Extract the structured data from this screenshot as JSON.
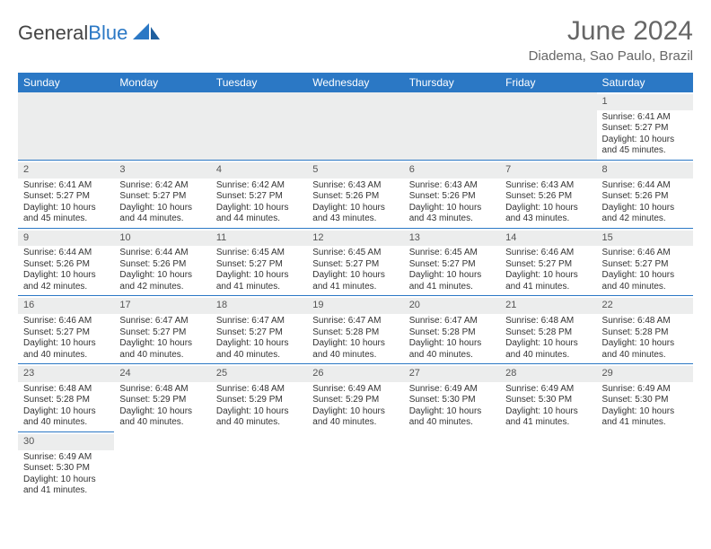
{
  "brand": {
    "name_a": "General",
    "name_b": "Blue",
    "color_a": "#444444",
    "color_b": "#2b78c5"
  },
  "title": "June 2024",
  "location": "Diadema, Sao Paulo, Brazil",
  "header_bg": "#2b78c5",
  "header_fg": "#ffffff",
  "daynum_bg": "#eceded",
  "cell_border": "#2b78c5",
  "weekdays": [
    "Sunday",
    "Monday",
    "Tuesday",
    "Wednesday",
    "Thursday",
    "Friday",
    "Saturday"
  ],
  "weeks": [
    [
      null,
      null,
      null,
      null,
      null,
      null,
      {
        "n": "1",
        "sr": "Sunrise: 6:41 AM",
        "ss": "Sunset: 5:27 PM",
        "d1": "Daylight: 10 hours",
        "d2": "and 45 minutes."
      }
    ],
    [
      {
        "n": "2",
        "sr": "Sunrise: 6:41 AM",
        "ss": "Sunset: 5:27 PM",
        "d1": "Daylight: 10 hours",
        "d2": "and 45 minutes."
      },
      {
        "n": "3",
        "sr": "Sunrise: 6:42 AM",
        "ss": "Sunset: 5:27 PM",
        "d1": "Daylight: 10 hours",
        "d2": "and 44 minutes."
      },
      {
        "n": "4",
        "sr": "Sunrise: 6:42 AM",
        "ss": "Sunset: 5:27 PM",
        "d1": "Daylight: 10 hours",
        "d2": "and 44 minutes."
      },
      {
        "n": "5",
        "sr": "Sunrise: 6:43 AM",
        "ss": "Sunset: 5:26 PM",
        "d1": "Daylight: 10 hours",
        "d2": "and 43 minutes."
      },
      {
        "n": "6",
        "sr": "Sunrise: 6:43 AM",
        "ss": "Sunset: 5:26 PM",
        "d1": "Daylight: 10 hours",
        "d2": "and 43 minutes."
      },
      {
        "n": "7",
        "sr": "Sunrise: 6:43 AM",
        "ss": "Sunset: 5:26 PM",
        "d1": "Daylight: 10 hours",
        "d2": "and 43 minutes."
      },
      {
        "n": "8",
        "sr": "Sunrise: 6:44 AM",
        "ss": "Sunset: 5:26 PM",
        "d1": "Daylight: 10 hours",
        "d2": "and 42 minutes."
      }
    ],
    [
      {
        "n": "9",
        "sr": "Sunrise: 6:44 AM",
        "ss": "Sunset: 5:26 PM",
        "d1": "Daylight: 10 hours",
        "d2": "and 42 minutes."
      },
      {
        "n": "10",
        "sr": "Sunrise: 6:44 AM",
        "ss": "Sunset: 5:26 PM",
        "d1": "Daylight: 10 hours",
        "d2": "and 42 minutes."
      },
      {
        "n": "11",
        "sr": "Sunrise: 6:45 AM",
        "ss": "Sunset: 5:27 PM",
        "d1": "Daylight: 10 hours",
        "d2": "and 41 minutes."
      },
      {
        "n": "12",
        "sr": "Sunrise: 6:45 AM",
        "ss": "Sunset: 5:27 PM",
        "d1": "Daylight: 10 hours",
        "d2": "and 41 minutes."
      },
      {
        "n": "13",
        "sr": "Sunrise: 6:45 AM",
        "ss": "Sunset: 5:27 PM",
        "d1": "Daylight: 10 hours",
        "d2": "and 41 minutes."
      },
      {
        "n": "14",
        "sr": "Sunrise: 6:46 AM",
        "ss": "Sunset: 5:27 PM",
        "d1": "Daylight: 10 hours",
        "d2": "and 41 minutes."
      },
      {
        "n": "15",
        "sr": "Sunrise: 6:46 AM",
        "ss": "Sunset: 5:27 PM",
        "d1": "Daylight: 10 hours",
        "d2": "and 40 minutes."
      }
    ],
    [
      {
        "n": "16",
        "sr": "Sunrise: 6:46 AM",
        "ss": "Sunset: 5:27 PM",
        "d1": "Daylight: 10 hours",
        "d2": "and 40 minutes."
      },
      {
        "n": "17",
        "sr": "Sunrise: 6:47 AM",
        "ss": "Sunset: 5:27 PM",
        "d1": "Daylight: 10 hours",
        "d2": "and 40 minutes."
      },
      {
        "n": "18",
        "sr": "Sunrise: 6:47 AM",
        "ss": "Sunset: 5:27 PM",
        "d1": "Daylight: 10 hours",
        "d2": "and 40 minutes."
      },
      {
        "n": "19",
        "sr": "Sunrise: 6:47 AM",
        "ss": "Sunset: 5:28 PM",
        "d1": "Daylight: 10 hours",
        "d2": "and 40 minutes."
      },
      {
        "n": "20",
        "sr": "Sunrise: 6:47 AM",
        "ss": "Sunset: 5:28 PM",
        "d1": "Daylight: 10 hours",
        "d2": "and 40 minutes."
      },
      {
        "n": "21",
        "sr": "Sunrise: 6:48 AM",
        "ss": "Sunset: 5:28 PM",
        "d1": "Daylight: 10 hours",
        "d2": "and 40 minutes."
      },
      {
        "n": "22",
        "sr": "Sunrise: 6:48 AM",
        "ss": "Sunset: 5:28 PM",
        "d1": "Daylight: 10 hours",
        "d2": "and 40 minutes."
      }
    ],
    [
      {
        "n": "23",
        "sr": "Sunrise: 6:48 AM",
        "ss": "Sunset: 5:28 PM",
        "d1": "Daylight: 10 hours",
        "d2": "and 40 minutes."
      },
      {
        "n": "24",
        "sr": "Sunrise: 6:48 AM",
        "ss": "Sunset: 5:29 PM",
        "d1": "Daylight: 10 hours",
        "d2": "and 40 minutes."
      },
      {
        "n": "25",
        "sr": "Sunrise: 6:48 AM",
        "ss": "Sunset: 5:29 PM",
        "d1": "Daylight: 10 hours",
        "d2": "and 40 minutes."
      },
      {
        "n": "26",
        "sr": "Sunrise: 6:49 AM",
        "ss": "Sunset: 5:29 PM",
        "d1": "Daylight: 10 hours",
        "d2": "and 40 minutes."
      },
      {
        "n": "27",
        "sr": "Sunrise: 6:49 AM",
        "ss": "Sunset: 5:30 PM",
        "d1": "Daylight: 10 hours",
        "d2": "and 40 minutes."
      },
      {
        "n": "28",
        "sr": "Sunrise: 6:49 AM",
        "ss": "Sunset: 5:30 PM",
        "d1": "Daylight: 10 hours",
        "d2": "and 41 minutes."
      },
      {
        "n": "29",
        "sr": "Sunrise: 6:49 AM",
        "ss": "Sunset: 5:30 PM",
        "d1": "Daylight: 10 hours",
        "d2": "and 41 minutes."
      }
    ],
    [
      {
        "n": "30",
        "sr": "Sunrise: 6:49 AM",
        "ss": "Sunset: 5:30 PM",
        "d1": "Daylight: 10 hours",
        "d2": "and 41 minutes."
      },
      null,
      null,
      null,
      null,
      null,
      null
    ]
  ]
}
